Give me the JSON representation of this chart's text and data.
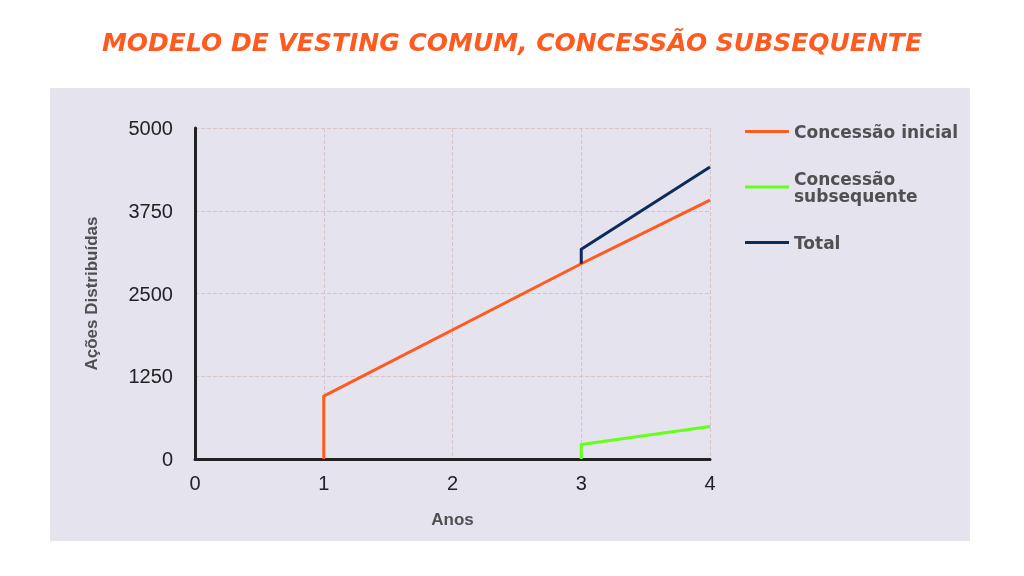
{
  "chart_data": {
    "type": "line",
    "title": "MODELO DE VESTING COMUM, CONCESSÃO SUBSEQUENTE",
    "xlabel": "Anos",
    "ylabel": "Ações Distribuídas",
    "xlim": [
      0,
      4
    ],
    "xticks": [
      0,
      1,
      2,
      3,
      4
    ],
    "ylim": [
      0,
      5000
    ],
    "yticks": [
      0,
      1250,
      2500,
      3750,
      5000
    ],
    "grid": true,
    "legend": "right",
    "marker": "none",
    "line_style": "solid",
    "series": [
      {
        "name": "Concessão inicial",
        "color": "#ff5a1f",
        "x": [
          1,
          1,
          3,
          4
        ],
        "values": [
          0,
          950,
          2950,
          3910
        ]
      },
      {
        "name": "Concessão subsequente",
        "color": "#66ff1a",
        "x": [
          3,
          3,
          4
        ],
        "values": [
          0,
          220,
          490
        ]
      },
      {
        "name": "Total",
        "color": "#0d2b5a",
        "x": [
          3,
          3,
          4
        ],
        "values": [
          2950,
          3170,
          4410
        ]
      }
    ]
  }
}
